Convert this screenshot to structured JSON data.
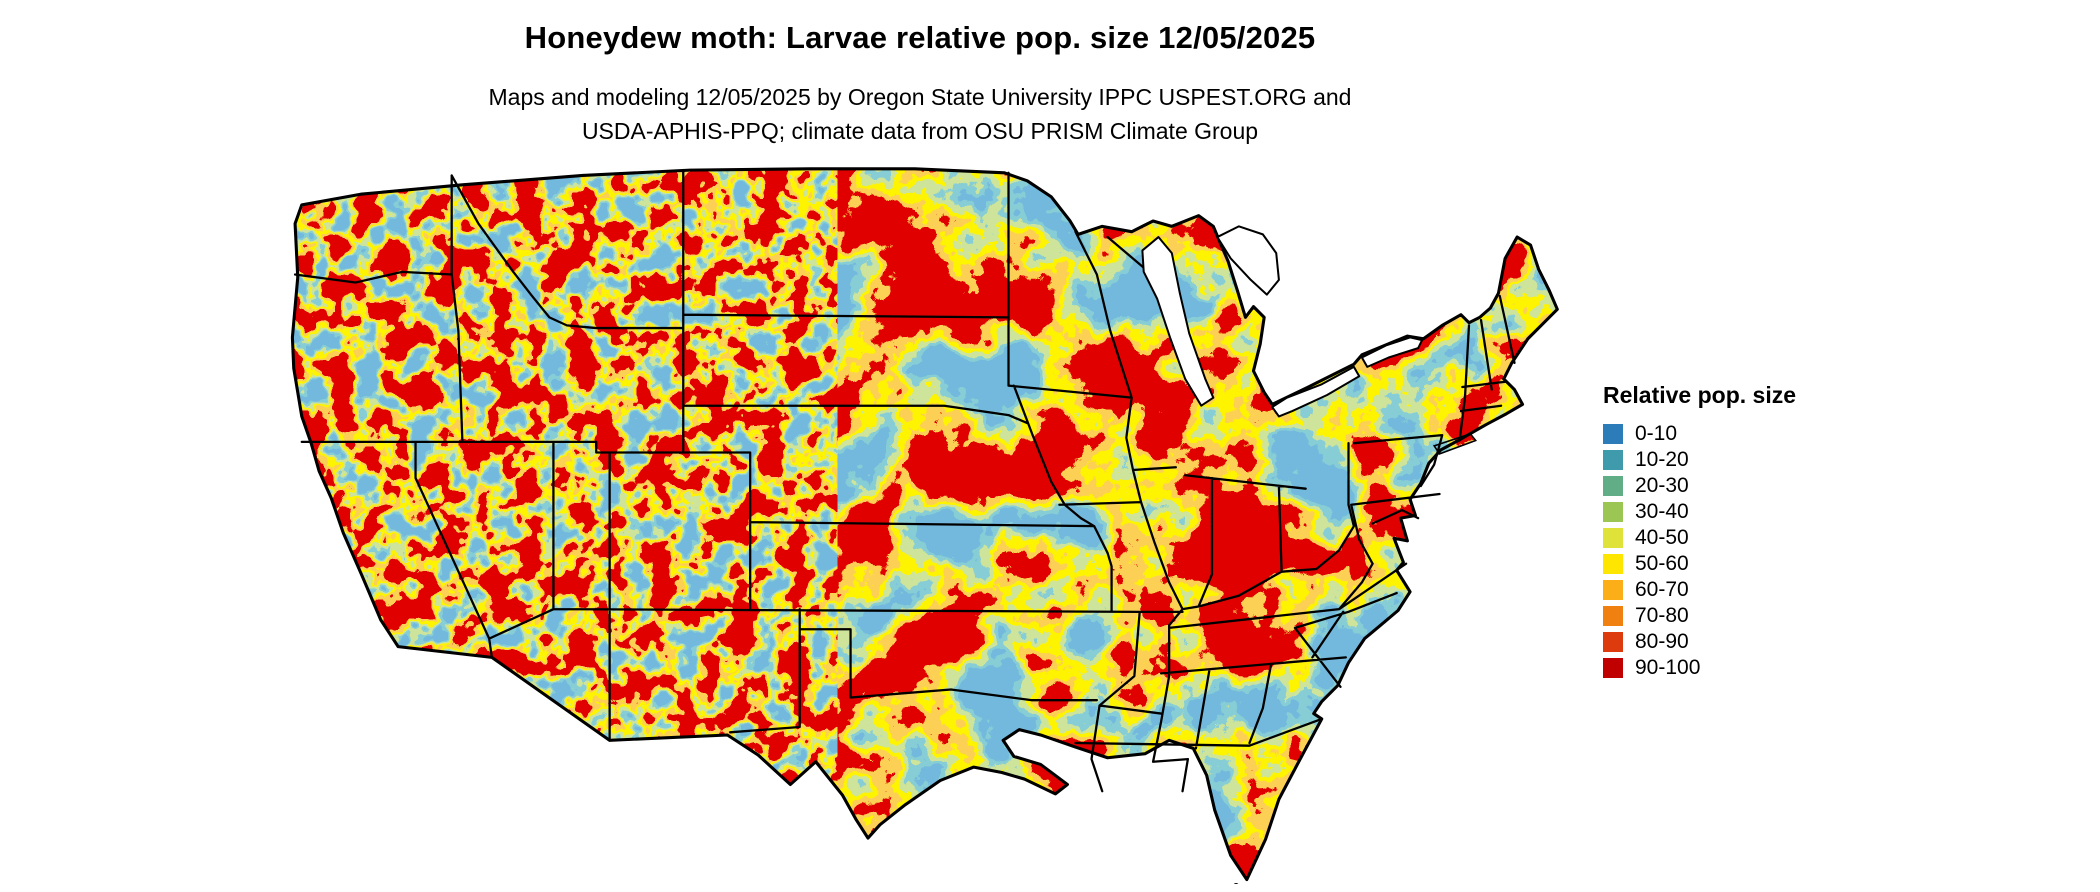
{
  "header": {
    "title": "Honeydew moth: Larvae relative pop. size 12/05/2025",
    "subtitle_line1": "Maps and modeling 12/05/2025 by Oregon State University IPPC USPEST.ORG and",
    "subtitle_line2": "USDA-APHIS-PPQ; climate data from OSU PRISM Climate Group"
  },
  "legend": {
    "title": "Relative pop. size",
    "classes": [
      {
        "label": "0-10",
        "color": "#2b7cb9"
      },
      {
        "label": "10-20",
        "color": "#3f9aab"
      },
      {
        "label": "20-30",
        "color": "#61ad85"
      },
      {
        "label": "30-40",
        "color": "#9cc653"
      },
      {
        "label": "40-50",
        "color": "#dfe239"
      },
      {
        "label": "50-60",
        "color": "#ffe600"
      },
      {
        "label": "60-70",
        "color": "#fbae17"
      },
      {
        "label": "70-80",
        "color": "#f0800f"
      },
      {
        "label": "80-90",
        "color": "#dd3b0d"
      },
      {
        "label": "90-100",
        "color": "#c00000"
      }
    ]
  },
  "map": {
    "land_high_color": "#c00000",
    "land_low_color": "#2b7cb9",
    "transition_yellow_color": "#ffe600",
    "transition_orange_color": "#f8a018",
    "water_color": "#ffffff",
    "boundary_color": "#000000"
  }
}
